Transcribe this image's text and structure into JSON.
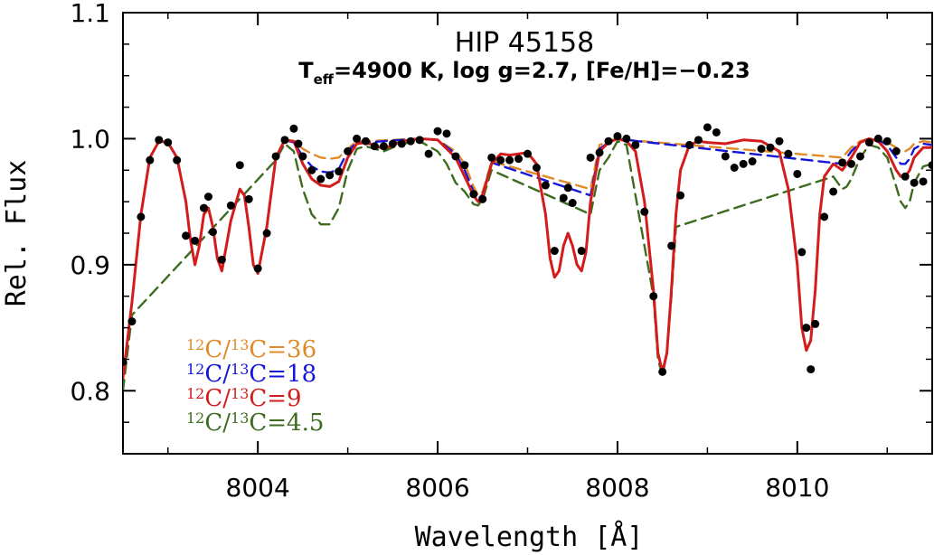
{
  "chart_data": {
    "type": "line",
    "title": "HIP 45158",
    "subtitle": {
      "teff_symbol": "T",
      "teff_sub": "eff",
      "rest": "=4900 K, log g=2.7, [Fe/H]=−0.23"
    },
    "xlabel": "Wavelength [Å]",
    "ylabel": "Rel. Flux",
    "xlim": [
      8002.5,
      8011.5
    ],
    "ylim": [
      0.75,
      1.1
    ],
    "xticks": [
      8004,
      8006,
      8008,
      8010
    ],
    "xtick_labels": [
      "8004",
      "8006",
      "8008",
      "8010"
    ],
    "yticks": [
      0.8,
      0.9,
      1.0,
      1.1
    ],
    "ytick_labels": [
      "0.8",
      "0.9",
      "1.0",
      "1.1"
    ],
    "legend_placement": "bottom-left",
    "legend": [
      {
        "sup1": "12",
        "a": "C/",
        "sup2": "13",
        "b": "C=36",
        "color": "#e08a2a"
      },
      {
        "sup1": "12",
        "a": "C/",
        "sup2": "13",
        "b": "C=18",
        "color": "#1515d8"
      },
      {
        "sup1": "12",
        "a": "C/",
        "sup2": "13",
        "b": "C=9",
        "color": "#d41c1c"
      },
      {
        "sup1": "12",
        "a": "C/",
        "sup2": "13",
        "b": "C=4.5",
        "color": "#3d6b1f"
      }
    ],
    "series": [
      {
        "name": "12C/13C=9",
        "style": "solid",
        "color": "#d41c1c",
        "x": [
          8002.5,
          8002.6,
          8002.7,
          8002.8,
          8002.9,
          8003.0,
          8003.1,
          8003.2,
          8003.25,
          8003.3,
          8003.35,
          8003.4,
          8003.45,
          8003.5,
          8003.55,
          8003.6,
          8003.7,
          8003.8,
          8003.85,
          8003.9,
          8003.95,
          8004.0,
          8004.1,
          8004.2,
          8004.3,
          8004.4,
          8004.5,
          8004.6,
          8004.7,
          8004.8,
          8004.9,
          8005.0,
          8005.1,
          8005.2,
          8005.4,
          8005.6,
          8005.8,
          8006.0,
          8006.2,
          8006.3,
          8006.4,
          8006.45,
          8006.5,
          8006.6,
          8006.7,
          8006.8,
          8007.0,
          8007.1,
          8007.2,
          8007.25,
          8007.3,
          8007.35,
          8007.4,
          8007.45,
          8007.5,
          8007.55,
          8007.6,
          8007.65,
          8007.7,
          8007.8,
          8007.9,
          8008.0,
          8008.1,
          8008.2,
          8008.3,
          8008.4,
          8008.45,
          8008.5,
          8008.55,
          8008.6,
          8008.65,
          8008.7,
          8008.8,
          8008.9,
          8009.0,
          8009.2,
          8009.4,
          8009.6,
          8009.8,
          8009.9,
          8010.0,
          8010.05,
          8010.1,
          8010.15,
          8010.2,
          8010.25,
          8010.3,
          8010.4,
          8010.5,
          8010.6,
          8010.7,
          8010.8,
          8010.9,
          8011.0,
          8011.1,
          8011.15,
          8011.2,
          8011.25,
          8011.3,
          8011.4,
          8011.5
        ],
        "y": [
          0.81,
          0.87,
          0.94,
          0.985,
          0.998,
          0.997,
          0.985,
          0.95,
          0.92,
          0.9,
          0.915,
          0.94,
          0.945,
          0.93,
          0.905,
          0.895,
          0.935,
          0.96,
          0.955,
          0.93,
          0.9,
          0.893,
          0.93,
          0.985,
          0.999,
          0.998,
          0.98,
          0.968,
          0.963,
          0.962,
          0.966,
          0.985,
          0.996,
          0.997,
          0.992,
          0.998,
          1.0,
          0.999,
          0.985,
          0.97,
          0.955,
          0.95,
          0.955,
          0.98,
          0.988,
          0.987,
          0.989,
          0.98,
          0.94,
          0.905,
          0.89,
          0.895,
          0.915,
          0.925,
          0.915,
          0.9,
          0.895,
          0.91,
          0.95,
          0.99,
          0.997,
          1.0,
          0.998,
          0.99,
          0.95,
          0.88,
          0.83,
          0.815,
          0.83,
          0.88,
          0.94,
          0.975,
          0.995,
          0.998,
          0.997,
          0.996,
          0.999,
          0.998,
          0.99,
          0.96,
          0.9,
          0.85,
          0.832,
          0.84,
          0.88,
          0.94,
          0.97,
          0.98,
          0.975,
          0.985,
          0.997,
          1.0,
          0.998,
          0.99,
          0.975,
          0.97,
          0.97,
          0.975,
          0.985,
          0.993,
          0.993
        ]
      },
      {
        "name": "12C/13C=36",
        "style": "dashed",
        "color": "#e08a2a",
        "x": [
          8004.3,
          8004.4,
          8004.5,
          8004.6,
          8004.7,
          8004.8,
          8004.9,
          8005.0,
          8005.1,
          8005.2,
          8005.8,
          8006.0,
          8006.2,
          8006.3,
          8006.4,
          8006.45,
          8006.5,
          8006.6,
          8007.7,
          8007.8,
          8007.9,
          8008.0,
          8008.1,
          8010.5,
          8010.6,
          8010.7,
          8010.8,
          8010.9,
          8011.0,
          8011.1,
          8011.15,
          8011.2,
          8011.25,
          8011.3,
          8011.4,
          8011.5
        ],
        "y": [
          0.999,
          0.998,
          0.992,
          0.988,
          0.985,
          0.984,
          0.985,
          0.992,
          0.998,
          0.998,
          1.0,
          0.999,
          0.99,
          0.98,
          0.962,
          0.955,
          0.958,
          0.982,
          0.96,
          0.995,
          0.998,
          1.0,
          0.999,
          0.985,
          0.993,
          0.998,
          1.0,
          0.999,
          0.997,
          0.993,
          0.99,
          0.99,
          0.992,
          0.996,
          0.998,
          0.997
        ]
      },
      {
        "name": "12C/13C=18",
        "style": "dashed",
        "color": "#1515d8",
        "x": [
          8004.3,
          8004.4,
          8004.5,
          8004.6,
          8004.7,
          8004.8,
          8004.9,
          8005.0,
          8005.1,
          8005.2,
          8005.8,
          8006.0,
          8006.2,
          8006.3,
          8006.4,
          8006.45,
          8006.5,
          8006.6,
          8007.7,
          8007.8,
          8007.9,
          8008.0,
          8008.1,
          8010.5,
          8010.6,
          8010.7,
          8010.8,
          8010.9,
          8011.0,
          8011.1,
          8011.15,
          8011.2,
          8011.25,
          8011.3,
          8011.4,
          8011.5
        ],
        "y": [
          0.999,
          0.997,
          0.986,
          0.978,
          0.974,
          0.973,
          0.976,
          0.99,
          0.997,
          0.997,
          1.0,
          0.999,
          0.988,
          0.975,
          0.958,
          0.952,
          0.956,
          0.981,
          0.955,
          0.992,
          0.997,
          1.0,
          0.999,
          0.98,
          0.99,
          0.997,
          1.0,
          0.999,
          0.995,
          0.985,
          0.98,
          0.98,
          0.984,
          0.992,
          0.996,
          0.995
        ]
      },
      {
        "name": "12C/13C=4.5",
        "style": "dashed",
        "color": "#3d6b1f",
        "x": [
          8002.5,
          8002.6,
          8004.2,
          8004.3,
          8004.4,
          8004.5,
          8004.6,
          8004.7,
          8004.8,
          8004.9,
          8005.0,
          8005.1,
          8005.2,
          8005.4,
          8005.6,
          8005.8,
          8006.0,
          8006.1,
          8006.2,
          8006.3,
          8006.4,
          8006.45,
          8006.5,
          8006.6,
          8007.7,
          8007.8,
          8007.9,
          8008.0,
          8008.1,
          8008.4,
          8008.45,
          8008.5,
          8008.55,
          8008.6,
          8008.65,
          8010.4,
          8010.5,
          8010.55,
          8010.6,
          8010.7,
          8010.8,
          8010.9,
          8011.0,
          8011.1,
          8011.15,
          8011.2,
          8011.25,
          8011.3,
          8011.4,
          8011.5
        ],
        "y": [
          0.8,
          0.86,
          0.983,
          0.996,
          0.99,
          0.96,
          0.94,
          0.932,
          0.932,
          0.945,
          0.975,
          0.992,
          0.994,
          0.99,
          0.996,
          0.998,
          0.99,
          0.98,
          0.965,
          0.958,
          0.948,
          0.947,
          0.952,
          0.975,
          0.94,
          0.975,
          0.985,
          0.998,
          0.995,
          0.875,
          0.825,
          0.812,
          0.83,
          0.875,
          0.93,
          0.97,
          0.96,
          0.962,
          0.968,
          0.985,
          0.995,
          0.993,
          0.985,
          0.962,
          0.95,
          0.945,
          0.95,
          0.965,
          0.978,
          0.98
        ]
      }
    ],
    "observed_points": {
      "name": "observed",
      "color": "#000000",
      "x": [
        8002.5,
        8002.6,
        8002.7,
        8002.8,
        8002.9,
        8003.0,
        8003.1,
        8003.2,
        8003.3,
        8003.4,
        8003.45,
        8003.5,
        8003.6,
        8003.7,
        8003.8,
        8003.9,
        8004.0,
        8004.1,
        8004.2,
        8004.3,
        8004.4,
        8004.45,
        8004.5,
        8004.6,
        8004.7,
        8004.8,
        8004.9,
        8005.0,
        8005.1,
        8005.2,
        8005.3,
        8005.4,
        8005.5,
        8005.6,
        8005.7,
        8005.8,
        8005.9,
        8006.0,
        8006.1,
        8006.2,
        8006.3,
        8006.4,
        8006.5,
        8006.6,
        8006.7,
        8006.8,
        8006.9,
        8007.0,
        8007.1,
        8007.2,
        8007.3,
        8007.4,
        8007.45,
        8007.5,
        8007.6,
        8007.7,
        8007.8,
        8007.9,
        8008.0,
        8008.1,
        8008.2,
        8008.3,
        8008.4,
        8008.5,
        8008.6,
        8008.7,
        8008.8,
        8008.9,
        8009.0,
        8009.1,
        8009.2,
        8009.3,
        8009.4,
        8009.5,
        8009.6,
        8009.7,
        8009.8,
        8009.9,
        8010.0,
        8010.05,
        8010.1,
        8010.15,
        8010.2,
        8010.3,
        8010.4,
        8010.5,
        8010.6,
        8010.7,
        8010.8,
        8010.9,
        8011.0,
        8011.1,
        8011.2,
        8011.3,
        8011.4,
        8011.5
      ],
      "y": [
        0.823,
        0.855,
        0.938,
        0.983,
        0.999,
        0.997,
        0.983,
        0.923,
        0.919,
        0.945,
        0.954,
        0.926,
        0.904,
        0.947,
        0.979,
        0.952,
        0.897,
        0.925,
        0.986,
        0.999,
        1.008,
        0.996,
        0.986,
        0.975,
        0.968,
        0.971,
        0.974,
        0.99,
        1.0,
        0.998,
        0.994,
        0.994,
        0.996,
        0.996,
        0.998,
        0.999,
        0.988,
        1.006,
        1.004,
        0.986,
        0.979,
        0.956,
        0.952,
        0.985,
        0.983,
        0.983,
        0.984,
        0.988,
        0.977,
        0.963,
        0.911,
        0.953,
        0.961,
        0.949,
        0.911,
        0.985,
        0.989,
        0.998,
        1.002,
        1.0,
        0.995,
        0.942,
        0.875,
        0.815,
        0.915,
        0.955,
        0.995,
        0.999,
        1.009,
        1.005,
        0.986,
        0.977,
        0.98,
        0.982,
        0.992,
        0.993,
        0.998,
        0.988,
        0.972,
        0.91,
        0.85,
        0.817,
        0.853,
        0.938,
        0.958,
        0.981,
        0.98,
        0.986,
        0.997,
        1.0,
        0.998,
        0.99,
        0.97,
        0.965,
        0.966,
        0.979
      ]
    }
  }
}
